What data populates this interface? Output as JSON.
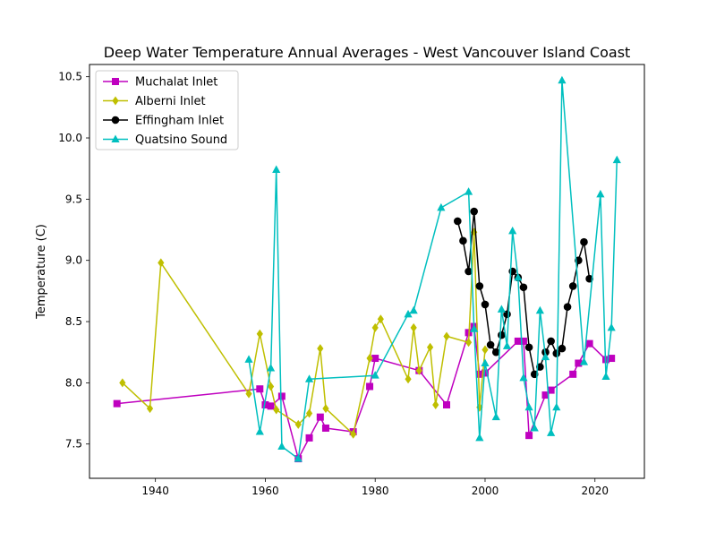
{
  "chart_data": {
    "type": "line",
    "title": "Deep Water Temperature Annual Averages - West Vancouver Island Coast",
    "xlabel": "",
    "ylabel": "Temperature (C)",
    "xlim": [
      1928,
      2029
    ],
    "ylim": [
      7.22,
      10.6
    ],
    "xticks": [
      "1940",
      "1960",
      "1980",
      "2000",
      "2020"
    ],
    "yticks": [
      "7.5",
      "8.0",
      "8.5",
      "9.0",
      "9.5",
      "10.0",
      "10.5"
    ],
    "grid": false,
    "legend": "top-left",
    "series": [
      {
        "name": "Muchalat Inlet",
        "color": "#bf00bf",
        "marker": "square",
        "points": [
          [
            1933,
            7.83
          ],
          [
            1959,
            7.95
          ],
          [
            1960,
            7.82
          ],
          [
            1961,
            7.81
          ],
          [
            1963,
            7.89
          ],
          [
            1966,
            7.38
          ],
          [
            1968,
            7.55
          ],
          [
            1970,
            7.72
          ],
          [
            1971,
            7.63
          ],
          [
            1976,
            7.6
          ],
          [
            1979,
            7.97
          ],
          [
            1980,
            8.2
          ],
          [
            1988,
            8.1
          ],
          [
            1993,
            7.82
          ],
          [
            1997,
            8.41
          ],
          [
            1998,
            8.46
          ],
          [
            1999,
            8.07
          ],
          [
            2000,
            8.08
          ],
          [
            2006,
            8.34
          ],
          [
            2007,
            8.34
          ],
          [
            2008,
            7.57
          ],
          [
            2011,
            7.9
          ],
          [
            2012,
            7.94
          ],
          [
            2016,
            8.07
          ],
          [
            2017,
            8.16
          ],
          [
            2019,
            8.32
          ],
          [
            2022,
            8.19
          ],
          [
            2023,
            8.2
          ]
        ]
      },
      {
        "name": "Alberni Inlet",
        "color": "#bfbf00",
        "marker": "diamond",
        "points": [
          [
            1934,
            8.0
          ],
          [
            1939,
            7.79
          ],
          [
            1941,
            8.98
          ],
          [
            1957,
            7.91
          ],
          [
            1959,
            8.4
          ],
          [
            1961,
            7.97
          ],
          [
            1962,
            7.78
          ],
          [
            1966,
            7.66
          ],
          [
            1968,
            7.75
          ],
          [
            1970,
            8.28
          ],
          [
            1971,
            7.79
          ],
          [
            1976,
            7.58
          ],
          [
            1979,
            8.2
          ],
          [
            1980,
            8.45
          ],
          [
            1981,
            8.52
          ],
          [
            1986,
            8.03
          ],
          [
            1987,
            8.45
          ],
          [
            1988,
            8.1
          ],
          [
            1990,
            8.29
          ],
          [
            1991,
            7.82
          ],
          [
            1993,
            8.38
          ],
          [
            1997,
            8.33
          ],
          [
            1998,
            9.23
          ],
          [
            1999,
            7.8
          ],
          [
            2000,
            8.27
          ]
        ]
      },
      {
        "name": "Effingham Inlet",
        "color": "#000000",
        "marker": "circle",
        "points": [
          [
            1995,
            9.32
          ],
          [
            1996,
            9.16
          ],
          [
            1997,
            8.91
          ],
          [
            1998,
            9.4
          ],
          [
            1999,
            8.79
          ],
          [
            2000,
            8.64
          ],
          [
            2001,
            8.31
          ],
          [
            2002,
            8.25
          ],
          [
            2003,
            8.39
          ],
          [
            2004,
            8.56
          ],
          [
            2005,
            8.91
          ],
          [
            2006,
            8.86
          ],
          [
            2007,
            8.78
          ],
          [
            2008,
            8.29
          ],
          [
            2009,
            8.07
          ],
          [
            2010,
            8.13
          ],
          [
            2011,
            8.25
          ],
          [
            2012,
            8.34
          ],
          [
            2013,
            8.24
          ],
          [
            2014,
            8.28
          ],
          [
            2015,
            8.62
          ],
          [
            2016,
            8.79
          ],
          [
            2017,
            9.0
          ],
          [
            2018,
            9.15
          ],
          [
            2019,
            8.85
          ]
        ]
      },
      {
        "name": "Quatsino Sound",
        "color": "#00bfbf",
        "marker": "triangle",
        "points": [
          [
            1957,
            8.19
          ],
          [
            1959,
            7.6
          ],
          [
            1961,
            8.12
          ],
          [
            1962,
            9.74
          ],
          [
            1963,
            7.48
          ],
          [
            1966,
            7.38
          ],
          [
            1968,
            8.03
          ],
          [
            1980,
            8.06
          ],
          [
            1986,
            8.56
          ],
          [
            1987,
            8.59
          ],
          [
            1992,
            9.43
          ],
          [
            1997,
            9.56
          ],
          [
            1998,
            8.44
          ],
          [
            1999,
            7.55
          ],
          [
            2000,
            8.16
          ],
          [
            2002,
            7.72
          ],
          [
            2003,
            8.6
          ],
          [
            2004,
            8.3
          ],
          [
            2005,
            9.24
          ],
          [
            2006,
            8.86
          ],
          [
            2007,
            8.04
          ],
          [
            2008,
            7.8
          ],
          [
            2009,
            7.63
          ],
          [
            2010,
            8.59
          ],
          [
            2011,
            8.21
          ],
          [
            2012,
            7.59
          ],
          [
            2013,
            7.8
          ],
          [
            2014,
            10.47
          ],
          [
            2018,
            8.17
          ],
          [
            2021,
            9.54
          ],
          [
            2022,
            8.05
          ],
          [
            2023,
            8.45
          ],
          [
            2024,
            9.82
          ]
        ]
      }
    ]
  }
}
